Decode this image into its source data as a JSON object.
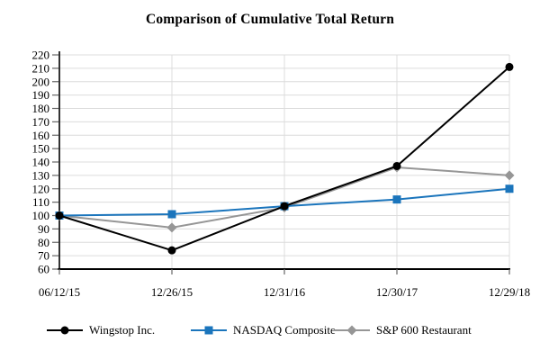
{
  "chart_data": {
    "type": "line",
    "title": "Comparison of Cumulative Total Return",
    "categories": [
      "06/12/15",
      "12/26/15",
      "12/31/16",
      "12/30/17",
      "12/29/18"
    ],
    "series": [
      {
        "name": "Wingstop Inc.",
        "marker": "circle",
        "color": "#000000",
        "values": [
          100,
          74,
          107,
          137,
          211
        ]
      },
      {
        "name": "NASDAQ Composite",
        "marker": "square",
        "color": "#1B75BC",
        "values": [
          100,
          101,
          107,
          112,
          120
        ]
      },
      {
        "name": "S&P 600 Restaurant",
        "marker": "diamond",
        "color": "#969696",
        "values": [
          100,
          91,
          106,
          136,
          130
        ]
      }
    ],
    "y_axis": {
      "min": 60,
      "max": 220,
      "step": 10,
      "tick_labels": [
        "60",
        "70",
        "80",
        "90",
        "100",
        "110",
        "120",
        "130",
        "140",
        "150",
        "160",
        "170",
        "180",
        "190",
        "200",
        "210",
        "220"
      ]
    },
    "x_axis": {
      "tick_labels": [
        "06/12/15",
        "12/26/15",
        "12/31/16",
        "12/30/17",
        "12/29/18"
      ]
    },
    "grid": {
      "horizontal": true,
      "vertical": true,
      "color": "#DCDCDC"
    },
    "axis_color": "#000000",
    "tick_color": "#666666",
    "text_color": "#000000",
    "legend_position": "bottom"
  }
}
